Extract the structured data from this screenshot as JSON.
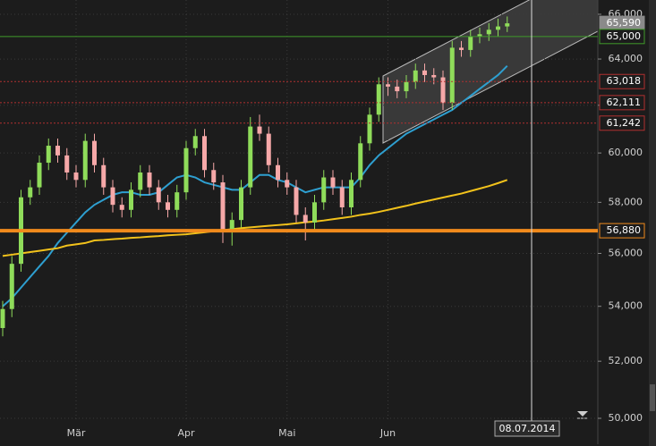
{
  "chart_data": {
    "type": "candlestick",
    "log": true,
    "ylim": [
      49118,
      66650
    ],
    "yticks": [
      {
        "value": 50000,
        "label": "50,000"
      },
      {
        "value": 52000,
        "label": "52,000"
      },
      {
        "value": 54000,
        "label": "54,000"
      },
      {
        "value": 56000,
        "label": "56,000"
      },
      {
        "value": 58000,
        "label": "58,000"
      },
      {
        "value": 60000,
        "label": "60,000"
      },
      {
        "value": 62000,
        "label": "62,000"
      },
      {
        "value": 64000,
        "label": "64,000"
      },
      {
        "value": 66000,
        "label": "66,000"
      }
    ],
    "categories": [
      null,
      null,
      null,
      null,
      null,
      null,
      null,
      null,
      "Mär",
      null,
      null,
      null,
      null,
      null,
      null,
      null,
      null,
      null,
      null,
      null,
      "Apr",
      null,
      null,
      null,
      null,
      null,
      null,
      null,
      null,
      null,
      null,
      "Mai",
      null,
      null,
      null,
      null,
      null,
      null,
      null,
      null,
      null,
      null,
      "Jun",
      null,
      null,
      null,
      null,
      null,
      null,
      null,
      null,
      null,
      null,
      null,
      null,
      null
    ],
    "up_color": "#8fdc5a",
    "down_color": "#f6a8a8",
    "open": [
      53200,
      53900,
      55600,
      58200,
      58600,
      59600,
      60300,
      59900,
      59200,
      58900,
      60500,
      59500,
      58600,
      57900,
      57700,
      58500,
      59200,
      58600,
      58000,
      57700,
      58400,
      60200,
      60700,
      59300,
      58800,
      56900,
      57300,
      58600,
      61100,
      60800,
      59500,
      58900,
      58600,
      57500,
      57200,
      58000,
      59000,
      58600,
      57800,
      58900,
      60400,
      61600,
      62900,
      62800,
      62600,
      63000,
      63500,
      63300,
      63200,
      62100,
      64500,
      64400,
      65000,
      65100,
      65300,
      65450
    ],
    "high": [
      54200,
      55900,
      58500,
      58900,
      59900,
      60600,
      60600,
      60200,
      59500,
      60800,
      60800,
      59800,
      58900,
      58200,
      58800,
      59500,
      59500,
      58900,
      58300,
      58700,
      60500,
      61000,
      61000,
      59600,
      59100,
      57600,
      58900,
      61500,
      61600,
      61100,
      59800,
      59200,
      58900,
      57800,
      58300,
      59300,
      59300,
      58900,
      59200,
      60700,
      61900,
      63200,
      63200,
      63100,
      63300,
      63800,
      63800,
      63600,
      63500,
      64800,
      64800,
      65300,
      65400,
      65600,
      65800,
      65900
    ],
    "low": [
      52900,
      53600,
      55300,
      57900,
      58300,
      59300,
      59600,
      58900,
      58600,
      58600,
      59200,
      58300,
      57600,
      57400,
      57400,
      58200,
      58300,
      57700,
      57400,
      57400,
      58100,
      59900,
      59000,
      58500,
      56400,
      56300,
      57000,
      58300,
      60500,
      59200,
      58600,
      58300,
      57200,
      56500,
      56900,
      57700,
      58300,
      57500,
      57500,
      58600,
      60100,
      61300,
      62400,
      62300,
      62300,
      62700,
      63000,
      62900,
      61800,
      61800,
      64100,
      64100,
      64700,
      64800,
      65000,
      65200
    ],
    "close": [
      53900,
      55600,
      58200,
      58600,
      59600,
      60300,
      59900,
      59200,
      58900,
      60500,
      59500,
      58600,
      57900,
      57700,
      58500,
      59200,
      58600,
      58000,
      57700,
      58400,
      60200,
      60700,
      59300,
      58800,
      56900,
      57300,
      58600,
      61100,
      60800,
      59500,
      58900,
      58600,
      57500,
      57200,
      58000,
      59000,
      58600,
      57800,
      58900,
      60400,
      61600,
      62900,
      62800,
      62600,
      63000,
      63500,
      63300,
      63200,
      62100,
      64500,
      64400,
      65000,
      65100,
      65300,
      65450,
      65590
    ],
    "lines": [
      {
        "color": "#2e9fd0",
        "values": [
          54000,
          54300,
          54700,
          55100,
          55500,
          55900,
          56400,
          56800,
          57200,
          57600,
          57900,
          58100,
          58300,
          58400,
          58400,
          58300,
          58300,
          58400,
          58700,
          59000,
          59100,
          59000,
          58800,
          58700,
          58600,
          58500,
          58500,
          58800,
          59100,
          59100,
          58900,
          58800,
          58600,
          58400,
          58500,
          58600,
          58600,
          58600,
          58600,
          59000,
          59500,
          59900,
          60200,
          60500,
          60800,
          61000,
          61200,
          61400,
          61600,
          61800,
          62100,
          62400,
          62700,
          63000,
          63300,
          63700
        ]
      },
      {
        "color": "#f2c21b",
        "values": [
          55900,
          55950,
          56000,
          56050,
          56100,
          56150,
          56200,
          56300,
          56350,
          56400,
          56500,
          56520,
          56550,
          56570,
          56600,
          56620,
          56650,
          56670,
          56700,
          56720,
          56740,
          56780,
          56820,
          56860,
          56900,
          56940,
          56980,
          57010,
          57040,
          57070,
          57100,
          57130,
          57170,
          57210,
          57240,
          57280,
          57330,
          57380,
          57430,
          57500,
          57550,
          57620,
          57700,
          57780,
          57860,
          57950,
          58030,
          58110,
          58190,
          58270,
          58350,
          58450,
          58550,
          58650,
          58770,
          58900
        ]
      }
    ],
    "levels": [
      {
        "value": 65590,
        "label": "65,590",
        "color": "#8a8a8a",
        "style": "none"
      },
      {
        "value": 65000,
        "label": "65,000",
        "color": "#3f9a2a",
        "style": "solid"
      },
      {
        "value": 63018,
        "label": "63,018",
        "color": "#b03030",
        "style": "dotted"
      },
      {
        "value": 62111,
        "label": "62,111",
        "color": "#b03030",
        "style": "dotted"
      },
      {
        "value": 61242,
        "label": "61,242",
        "color": "#b03030",
        "style": "dotted"
      },
      {
        "value": 56880,
        "label": "56,880",
        "color": "#f08a1c",
        "style": "thick"
      }
    ],
    "crosshair_label": "08.07.2014"
  }
}
